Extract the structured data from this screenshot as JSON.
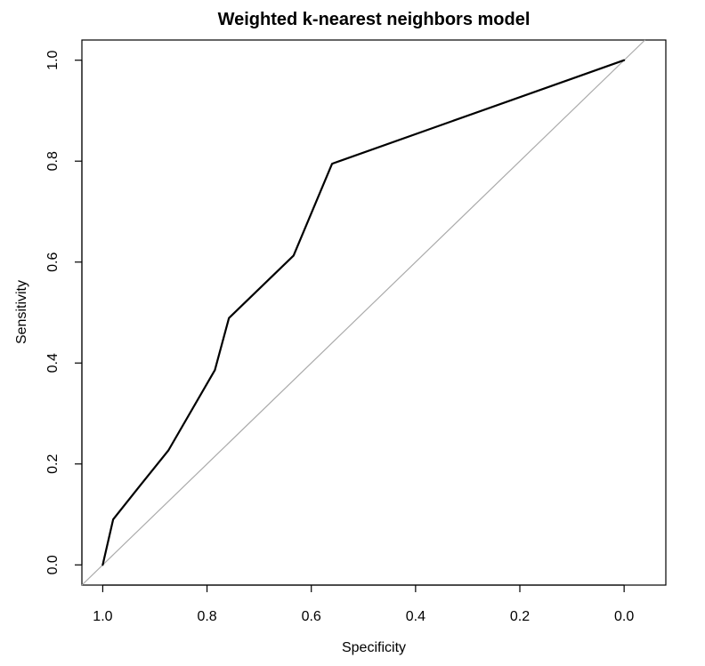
{
  "chart_data": {
    "type": "line",
    "title": "Weighted k-nearest neighbors model",
    "xlabel": "Specificity",
    "ylabel": "Sensitivity",
    "x_reversed": true,
    "xlim": [
      1.04,
      -0.08
    ],
    "ylim": [
      -0.04,
      1.04
    ],
    "x_ticks": [
      "1.0",
      "0.8",
      "0.6",
      "0.4",
      "0.2",
      "0.0"
    ],
    "y_ticks": [
      "0.0",
      "0.2",
      "0.4",
      "0.6",
      "0.8",
      "1.0"
    ],
    "grid": false,
    "series": [
      {
        "color": "#000000",
        "x": [
          1.0,
          0.98,
          0.93,
          0.874,
          0.785,
          0.758,
          0.634,
          0.56,
          0.0
        ],
        "y": [
          0.0,
          0.09,
          0.155,
          0.227,
          0.386,
          0.489,
          0.613,
          0.795,
          1.0
        ]
      }
    ],
    "reference_line": {
      "color": "#aaaaaa",
      "from": [
        1.0,
        0.0
      ],
      "to": [
        0.0,
        1.0
      ]
    }
  }
}
